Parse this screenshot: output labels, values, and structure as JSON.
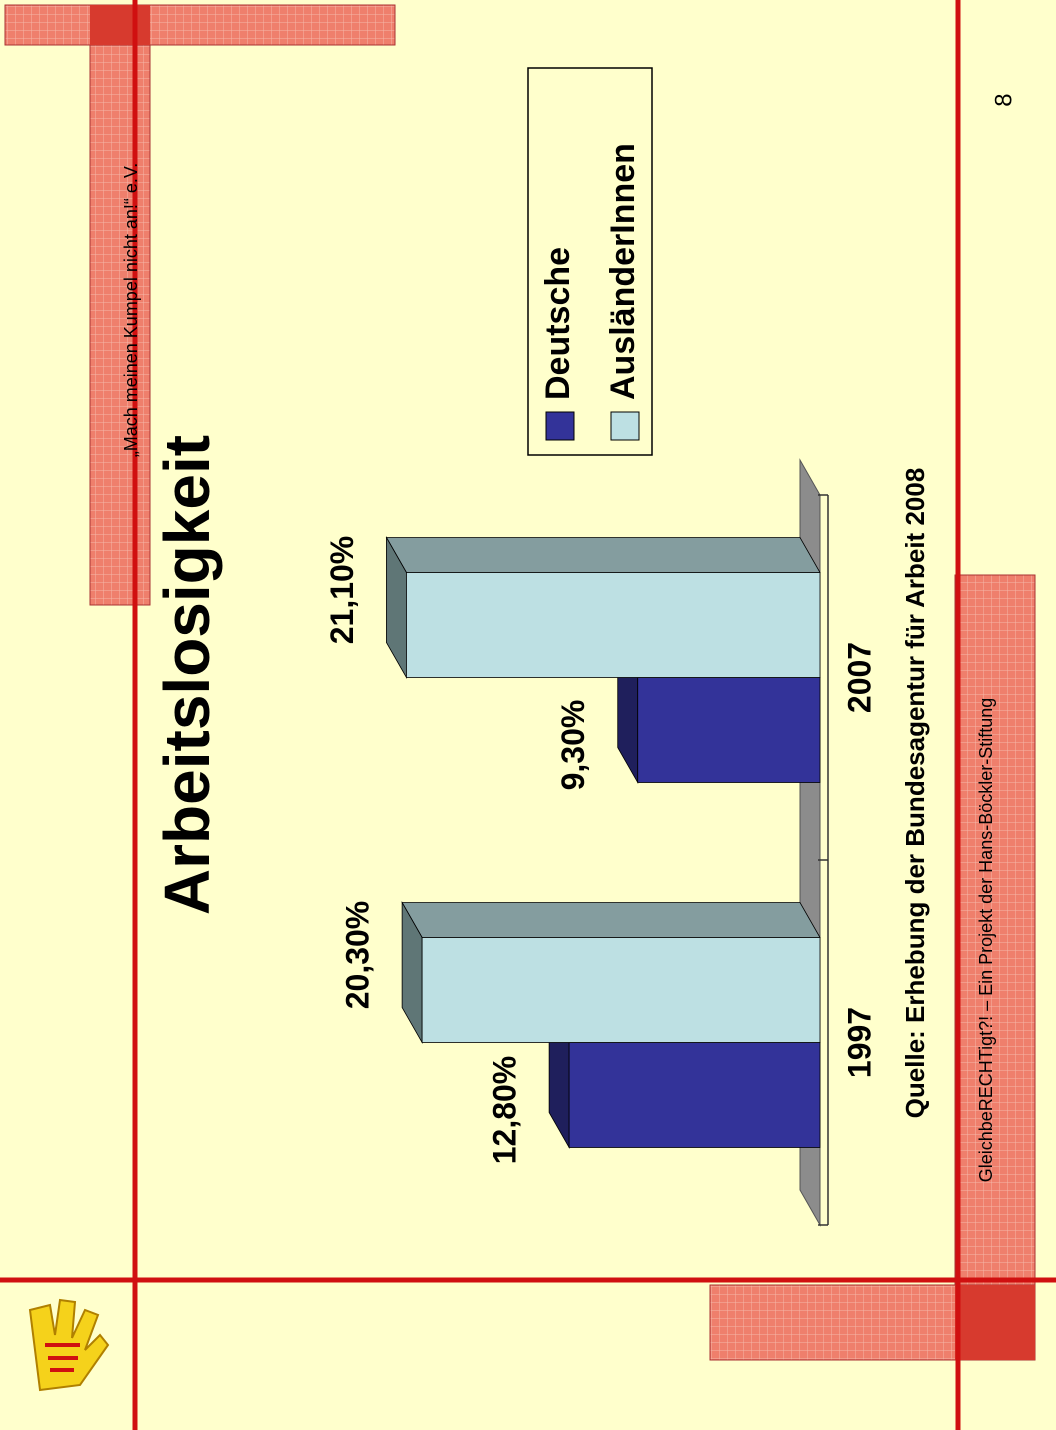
{
  "header": "„Mach meinen Kumpel nicht an!“ e.V.",
  "footer": "GleichbeRECHTigt?! – Ein Projekt der Hans-Böckler-Stiftung",
  "page_number": "8",
  "chart_data": {
    "type": "bar",
    "title": "Arbeitslosigkeit",
    "source": "Quelle: Erhebung der Bundesagentur für Arbeit 2008",
    "categories": [
      "1997",
      "2007"
    ],
    "series": [
      {
        "name": "Deutsche",
        "color": "#333399",
        "values": [
          12.8,
          9.3
        ],
        "value_labels": [
          "12,80%",
          "9,30%"
        ]
      },
      {
        "name": "AusländerInnen",
        "color": "#bde0e3",
        "values": [
          20.3,
          21.1
        ],
        "value_labels": [
          "20,30%",
          "21,10%"
        ]
      }
    ],
    "ylim": [
      0,
      25
    ],
    "legend": "right",
    "grid": false
  }
}
